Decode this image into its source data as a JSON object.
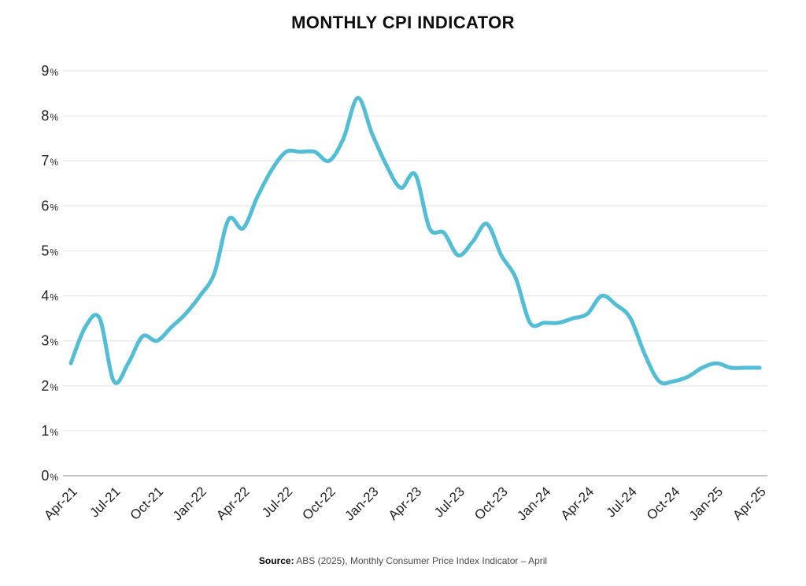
{
  "title": "MONTHLY CPI INDICATOR",
  "source": {
    "label": "Source:",
    "text": " ABS (2025), Monthly Consumer Price Index Indicator – April"
  },
  "colors": {
    "line": "#53bdd5",
    "grid": "#e8e8e8",
    "axis_line": "#c4c4c4",
    "text": "#222222"
  },
  "chart_data": {
    "type": "line",
    "title": "MONTHLY CPI INDICATOR",
    "ylabel": "",
    "xlabel": "",
    "ylim": [
      0,
      9
    ],
    "grid": "horizontal",
    "legend": "none",
    "smoothed": true,
    "y_ticks": [
      "0%",
      "1%",
      "2%",
      "3%",
      "4%",
      "5%",
      "6%",
      "7%",
      "8%",
      "9%"
    ],
    "x_tick_labels": [
      "Apr-21",
      "Jul-21",
      "Oct-21",
      "Jan-22",
      "Apr-22",
      "Jul-22",
      "Oct-22",
      "Jan-23",
      "Apr-23",
      "Jul-23",
      "Oct-23",
      "Jan-24",
      "Apr-24",
      "Jul-24",
      "Oct-24",
      "Jan-25",
      "Apr-25"
    ],
    "x_tick_every": 3,
    "x": [
      "Apr-21",
      "May-21",
      "Jun-21",
      "Jul-21",
      "Aug-21",
      "Sep-21",
      "Oct-21",
      "Nov-21",
      "Dec-21",
      "Jan-22",
      "Feb-22",
      "Mar-22",
      "Apr-22",
      "May-22",
      "Jun-22",
      "Jul-22",
      "Aug-22",
      "Sep-22",
      "Oct-22",
      "Nov-22",
      "Dec-22",
      "Jan-23",
      "Feb-23",
      "Mar-23",
      "Apr-23",
      "May-23",
      "Jun-23",
      "Jul-23",
      "Aug-23",
      "Sep-23",
      "Oct-23",
      "Nov-23",
      "Dec-23",
      "Jan-24",
      "Feb-24",
      "Mar-24",
      "Apr-24",
      "May-24",
      "Jun-24",
      "Jul-24",
      "Aug-24",
      "Sep-24",
      "Oct-24",
      "Nov-24",
      "Dec-24",
      "Jan-25",
      "Feb-25",
      "Mar-25",
      "Apr-25"
    ],
    "values": [
      2.5,
      3.3,
      3.5,
      2.1,
      2.5,
      3.1,
      3.0,
      3.3,
      3.6,
      4.0,
      4.5,
      5.7,
      5.5,
      6.2,
      6.8,
      7.2,
      7.2,
      7.2,
      7.0,
      7.5,
      8.4,
      7.6,
      6.9,
      6.4,
      6.7,
      5.5,
      5.4,
      4.9,
      5.2,
      5.6,
      4.9,
      4.4,
      3.4,
      3.4,
      3.4,
      3.5,
      3.6,
      4.0,
      3.8,
      3.5,
      2.7,
      2.1,
      2.1,
      2.2,
      2.4,
      2.5,
      2.4,
      2.4,
      2.4
    ]
  }
}
